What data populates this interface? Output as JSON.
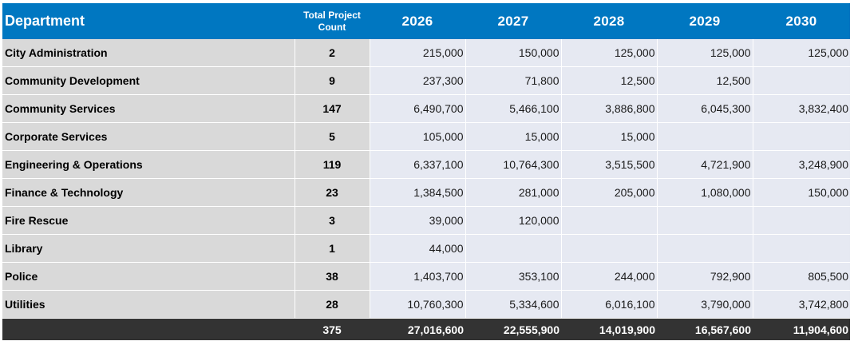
{
  "table": {
    "headers": {
      "department": "Department",
      "count": "Total Project Count",
      "years": [
        "2026",
        "2027",
        "2028",
        "2029",
        "2030"
      ]
    },
    "rows": [
      {
        "department": "City Administration",
        "count": "2",
        "values": [
          "215,000",
          "150,000",
          "125,000",
          "125,000",
          "125,000"
        ]
      },
      {
        "department": "Community Development",
        "count": "9",
        "values": [
          "237,300",
          "71,800",
          "12,500",
          "12,500",
          ""
        ]
      },
      {
        "department": "Community Services",
        "count": "147",
        "values": [
          "6,490,700",
          "5,466,100",
          "3,886,800",
          "6,045,300",
          "3,832,400"
        ]
      },
      {
        "department": "Corporate Services",
        "count": "5",
        "values": [
          "105,000",
          "15,000",
          "15,000",
          "",
          ""
        ]
      },
      {
        "department": "Engineering & Operations",
        "count": "119",
        "values": [
          "6,337,100",
          "10,764,300",
          "3,515,500",
          "4,721,900",
          "3,248,900"
        ]
      },
      {
        "department": "Finance & Technology",
        "count": "23",
        "values": [
          "1,384,500",
          "281,000",
          "205,000",
          "1,080,000",
          "150,000"
        ]
      },
      {
        "department": "Fire Rescue",
        "count": "3",
        "values": [
          "39,000",
          "120,000",
          "",
          "",
          ""
        ]
      },
      {
        "department": "Library",
        "count": "1",
        "values": [
          "44,000",
          "",
          "",
          "",
          ""
        ]
      },
      {
        "department": "Police",
        "count": "38",
        "values": [
          "1,403,700",
          "353,100",
          "244,000",
          "792,900",
          "805,500"
        ]
      },
      {
        "department": "Utilities",
        "count": "28",
        "values": [
          "10,760,300",
          "5,334,600",
          "6,016,100",
          "3,790,000",
          "3,742,800"
        ]
      }
    ],
    "totals": {
      "label": "",
      "count": "375",
      "values": [
        "27,016,600",
        "22,555,900",
        "14,019,900",
        "16,567,600",
        "11,904,600"
      ]
    }
  },
  "colors": {
    "header_bg": "#0077c1",
    "label_bg": "#d9d9d9",
    "value_bg": "#e6e9f2",
    "total_bg": "#333333"
  }
}
